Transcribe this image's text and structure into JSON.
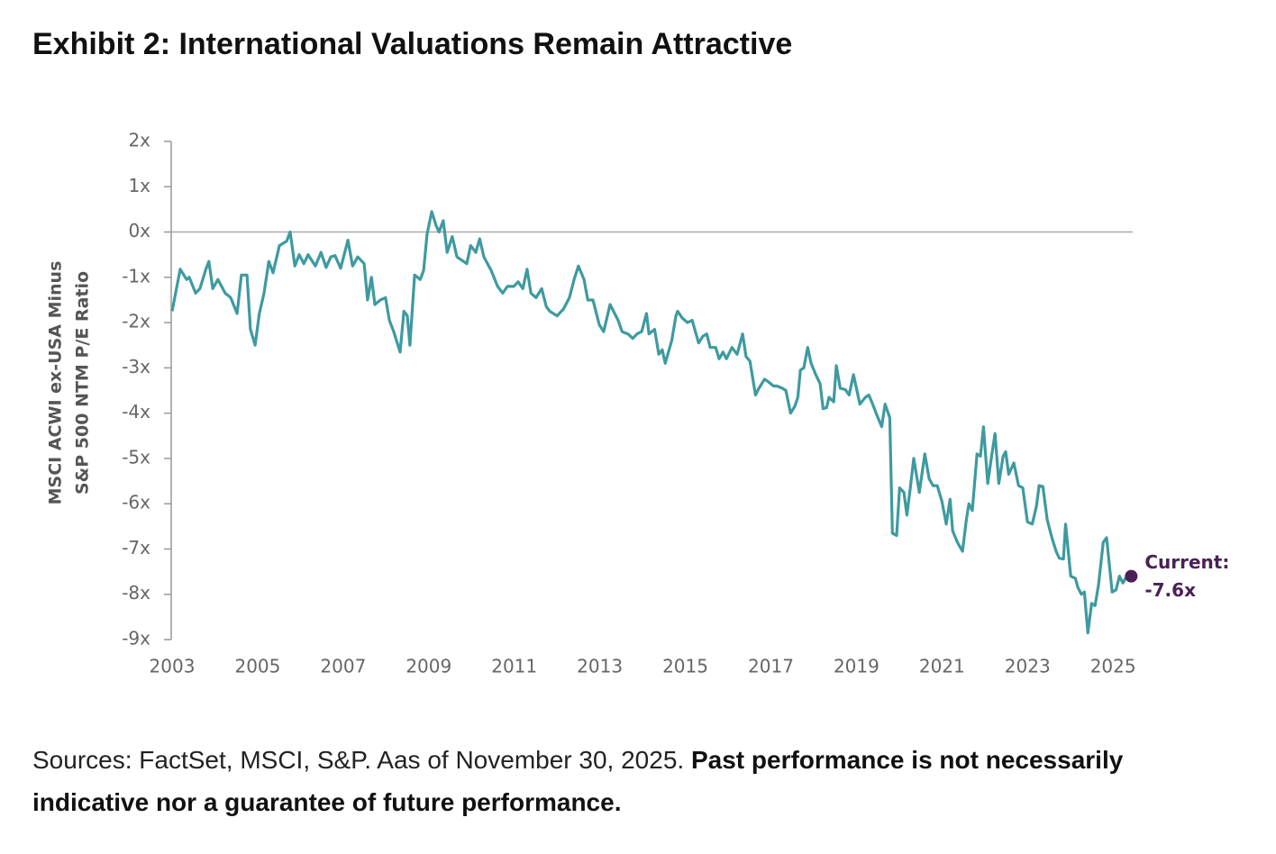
{
  "title": "Exhibit 2: International Valuations Remain Attractive",
  "chart_data": {
    "type": "line",
    "y_label": [
      "MSCI ACWI ex-USA Minus",
      "S&P 500 NTM P/E Ratio"
    ],
    "color": "#3e9aa0",
    "x": [
      2003.0,
      2003.19,
      2003.34,
      2003.4,
      2003.55,
      2003.65,
      2003.78,
      2003.86,
      2003.95,
      2004.07,
      2004.24,
      2004.37,
      2004.52,
      2004.62,
      2004.75,
      2004.83,
      2004.94,
      2005.04,
      2005.15,
      2005.26,
      2005.36,
      2005.51,
      2005.68,
      2005.76,
      2005.87,
      2005.97,
      2006.08,
      2006.18,
      2006.35,
      2006.48,
      2006.6,
      2006.71,
      2006.81,
      2006.94,
      2007.11,
      2007.22,
      2007.34,
      2007.49,
      2007.57,
      2007.66,
      2007.74,
      2007.87,
      2007.99,
      2008.08,
      2008.18,
      2008.33,
      2008.42,
      2008.5,
      2008.56,
      2008.67,
      2008.8,
      2008.88,
      2008.96,
      2009.07,
      2009.17,
      2009.24,
      2009.34,
      2009.43,
      2009.55,
      2009.66,
      2009.89,
      2009.98,
      2010.1,
      2010.19,
      2010.29,
      2010.46,
      2010.61,
      2010.73,
      2010.84,
      2010.99,
      2011.09,
      2011.2,
      2011.3,
      2011.39,
      2011.51,
      2011.64,
      2011.75,
      2011.83,
      2012.0,
      2012.15,
      2012.29,
      2012.4,
      2012.5,
      2012.63,
      2012.72,
      2012.84,
      2012.99,
      2013.09,
      2013.24,
      2013.43,
      2013.52,
      2013.66,
      2013.77,
      2013.87,
      2013.98,
      2014.09,
      2014.15,
      2014.28,
      2014.38,
      2014.46,
      2014.53,
      2014.68,
      2014.78,
      2014.82,
      2014.93,
      2015.05,
      2015.16,
      2015.31,
      2015.41,
      2015.5,
      2015.58,
      2015.71,
      2015.79,
      2015.88,
      2015.96,
      2016.09,
      2016.21,
      2016.34,
      2016.42,
      2016.51,
      2016.64,
      2016.72,
      2016.85,
      2016.93,
      2017.06,
      2017.14,
      2017.27,
      2017.35,
      2017.46,
      2017.56,
      2017.63,
      2017.69,
      2017.77,
      2017.86,
      2017.94,
      2018.05,
      2018.15,
      2018.22,
      2018.3,
      2018.36,
      2018.47,
      2018.53,
      2018.62,
      2018.74,
      2018.83,
      2018.93,
      2019.0,
      2019.08,
      2019.21,
      2019.29,
      2019.38,
      2019.46,
      2019.59,
      2019.67,
      2019.78,
      2019.84,
      2019.94,
      2020.01,
      2020.11,
      2020.18,
      2020.26,
      2020.34,
      2020.47,
      2020.6,
      2020.7,
      2020.79,
      2020.89,
      2021.0,
      2021.1,
      2021.19,
      2021.25,
      2021.36,
      2021.48,
      2021.57,
      2021.63,
      2021.71,
      2021.82,
      2021.9,
      2021.97,
      2022.07,
      2022.16,
      2022.24,
      2022.33,
      2022.43,
      2022.49,
      2022.56,
      2022.68,
      2022.79,
      2022.89,
      2023.0,
      2023.11,
      2023.21,
      2023.27,
      2023.36,
      2023.46,
      2023.57,
      2023.67,
      2023.74,
      2023.84,
      2023.89,
      2024.01,
      2024.12,
      2024.18,
      2024.26,
      2024.33,
      2024.41,
      2024.5,
      2024.58,
      2024.66,
      2024.77,
      2024.85,
      2024.98,
      2025.07,
      2025.15,
      2025.23,
      2025.32
    ],
    "values": [
      -1.75,
      -0.82,
      -1.05,
      -1.0,
      -1.35,
      -1.25,
      -0.85,
      -0.65,
      -1.25,
      -1.05,
      -1.35,
      -1.45,
      -1.8,
      -0.95,
      -0.95,
      -2.15,
      -2.5,
      -1.8,
      -1.35,
      -0.65,
      -0.9,
      -0.3,
      -0.2,
      0.0,
      -0.75,
      -0.5,
      -0.7,
      -0.5,
      -0.75,
      -0.45,
      -0.78,
      -0.55,
      -0.52,
      -0.8,
      -0.18,
      -0.75,
      -0.55,
      -0.7,
      -1.5,
      -1.0,
      -1.6,
      -1.5,
      -1.45,
      -1.95,
      -2.2,
      -2.65,
      -1.75,
      -1.85,
      -2.5,
      -0.95,
      -1.05,
      -0.85,
      -0.05,
      0.45,
      0.15,
      0.0,
      0.25,
      -0.45,
      -0.1,
      -0.55,
      -0.7,
      -0.3,
      -0.45,
      -0.15,
      -0.55,
      -0.85,
      -1.2,
      -1.35,
      -1.2,
      -1.2,
      -1.1,
      -1.25,
      -0.82,
      -1.35,
      -1.45,
      -1.25,
      -1.65,
      -1.75,
      -1.85,
      -1.7,
      -1.45,
      -1.05,
      -0.75,
      -1.05,
      -1.5,
      -1.5,
      -2.05,
      -2.2,
      -1.6,
      -1.95,
      -2.2,
      -2.25,
      -2.35,
      -2.25,
      -2.2,
      -1.8,
      -2.25,
      -2.15,
      -2.7,
      -2.6,
      -2.9,
      -2.4,
      -1.85,
      -1.75,
      -1.9,
      -2.0,
      -1.95,
      -2.45,
      -2.3,
      -2.25,
      -2.55,
      -2.55,
      -2.8,
      -2.65,
      -2.8,
      -2.55,
      -2.7,
      -2.25,
      -2.75,
      -2.85,
      -3.6,
      -3.45,
      -3.25,
      -3.3,
      -3.4,
      -3.4,
      -3.45,
      -3.5,
      -4.0,
      -3.85,
      -3.65,
      -3.05,
      -3.0,
      -2.55,
      -2.9,
      -3.15,
      -3.35,
      -3.9,
      -3.88,
      -3.65,
      -3.75,
      -2.95,
      -3.45,
      -3.48,
      -3.6,
      -3.15,
      -3.45,
      -3.8,
      -3.65,
      -3.6,
      -3.8,
      -4.0,
      -4.3,
      -3.8,
      -4.1,
      -6.65,
      -6.7,
      -5.65,
      -5.75,
      -6.25,
      -5.65,
      -5.0,
      -5.75,
      -4.9,
      -5.45,
      -5.6,
      -5.6,
      -5.95,
      -6.45,
      -5.9,
      -6.6,
      -6.85,
      -7.05,
      -6.35,
      -6.0,
      -6.15,
      -4.9,
      -4.95,
      -4.3,
      -5.55,
      -4.95,
      -4.45,
      -5.55,
      -4.95,
      -4.85,
      -5.35,
      -5.1,
      -5.6,
      -5.65,
      -6.4,
      -6.45,
      -6.05,
      -5.6,
      -5.62,
      -6.35,
      -6.75,
      -7.05,
      -7.2,
      -7.22,
      -6.45,
      -7.6,
      -7.65,
      -7.85,
      -8.0,
      -7.95,
      -8.85,
      -8.2,
      -8.25,
      -7.8,
      -6.85,
      -6.75,
      -7.95,
      -7.9,
      -7.6,
      -7.75,
      -7.6
    ],
    "current": {
      "label": "Current:",
      "value": -7.6,
      "value_label": "-7.6x",
      "color": "#4a2156"
    },
    "xlim": [
      2003,
      2025.46
    ],
    "xticks": [
      2003,
      2005,
      2007,
      2009,
      2011,
      2013,
      2015,
      2017,
      2019,
      2021,
      2023,
      2025
    ],
    "ylim": [
      -9,
      2
    ],
    "yticks": [
      {
        "value": 2,
        "label": "2x"
      },
      {
        "value": 1,
        "label": "1x"
      },
      {
        "value": 0,
        "label": "0x"
      },
      {
        "value": -1,
        "label": "-1x"
      },
      {
        "value": -2,
        "label": "-2x"
      },
      {
        "value": -3,
        "label": "-3x"
      },
      {
        "value": -4,
        "label": "-4x"
      },
      {
        "value": -5,
        "label": "-5x"
      },
      {
        "value": -6,
        "label": "-6x"
      },
      {
        "value": -7,
        "label": "-7x"
      },
      {
        "value": -8,
        "label": "-8x"
      },
      {
        "value": -9,
        "label": "-9x"
      }
    ],
    "zero_line": true
  },
  "footnote": {
    "text": "Sources: FactSet, MSCI, S&P. Aas of November 30, 2025.",
    "bold": "Past performance is not necessarily indicative nor a guarantee of future performance."
  }
}
